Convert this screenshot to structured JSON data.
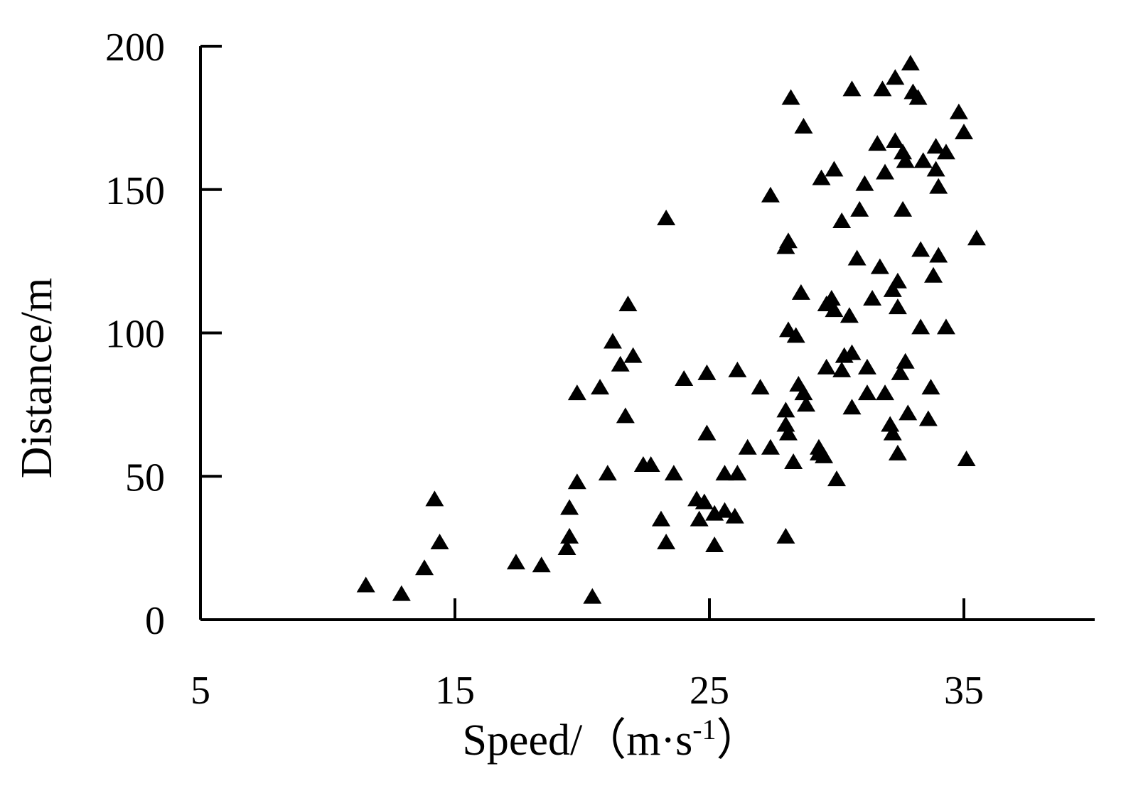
{
  "chart_data": {
    "type": "scatter",
    "title": "",
    "xlabel": "Speed/（m·s",
    "xlabel_superscript": "-1",
    "xlabel_close": "）",
    "ylabel": "Distance/m",
    "xlim": [
      5,
      40
    ],
    "ylim": [
      0,
      200
    ],
    "x_ticks": [
      5,
      15,
      25,
      35
    ],
    "y_ticks": [
      0,
      50,
      100,
      150,
      200
    ],
    "x_tick_labels": [
      "5",
      "15",
      "25",
      "35"
    ],
    "y_tick_labels": [
      "0",
      "50",
      "100",
      "150",
      "200"
    ],
    "grid": false,
    "marker": "triangle",
    "marker_color": "#000000",
    "series": [
      {
        "points": [
          [
            11.5,
            12
          ],
          [
            12.9,
            9
          ],
          [
            13.8,
            18
          ],
          [
            14.2,
            42
          ],
          [
            14.4,
            27
          ],
          [
            17.4,
            20
          ],
          [
            18.4,
            19
          ],
          [
            19.4,
            25
          ],
          [
            19.5,
            29
          ],
          [
            19.5,
            39
          ],
          [
            19.8,
            48
          ],
          [
            19.8,
            79
          ],
          [
            20.4,
            8
          ],
          [
            20.7,
            81
          ],
          [
            21.0,
            51
          ],
          [
            21.2,
            97
          ],
          [
            21.5,
            89
          ],
          [
            21.7,
            71
          ],
          [
            21.8,
            110
          ],
          [
            22.0,
            92
          ],
          [
            22.4,
            54
          ],
          [
            22.7,
            54
          ],
          [
            23.1,
            35
          ],
          [
            23.3,
            27
          ],
          [
            23.3,
            140
          ],
          [
            23.6,
            51
          ],
          [
            24.0,
            84
          ],
          [
            24.5,
            42
          ],
          [
            24.6,
            35
          ],
          [
            24.8,
            41
          ],
          [
            24.9,
            86
          ],
          [
            24.9,
            65
          ],
          [
            25.2,
            37
          ],
          [
            25.2,
            26
          ],
          [
            25.6,
            38
          ],
          [
            25.6,
            51
          ],
          [
            26.0,
            36
          ],
          [
            26.1,
            51
          ],
          [
            26.1,
            87
          ],
          [
            26.5,
            60
          ],
          [
            27.0,
            81
          ],
          [
            27.4,
            148
          ],
          [
            27.4,
            60
          ],
          [
            28.0,
            29
          ],
          [
            28.0,
            73
          ],
          [
            28.0,
            68
          ],
          [
            28.1,
            65
          ],
          [
            28.1,
            101
          ],
          [
            28.0,
            130
          ],
          [
            28.1,
            132
          ],
          [
            28.2,
            182
          ],
          [
            28.3,
            55
          ],
          [
            28.4,
            99
          ],
          [
            28.5,
            82
          ],
          [
            28.6,
            114
          ],
          [
            28.7,
            79
          ],
          [
            28.7,
            172
          ],
          [
            28.8,
            75
          ],
          [
            29.3,
            58
          ],
          [
            29.3,
            60
          ],
          [
            29.4,
            154
          ],
          [
            29.5,
            57
          ],
          [
            29.6,
            110
          ],
          [
            29.6,
            88
          ],
          [
            29.8,
            112
          ],
          [
            29.9,
            157
          ],
          [
            29.9,
            108
          ],
          [
            30.0,
            49
          ],
          [
            30.2,
            139
          ],
          [
            30.2,
            87
          ],
          [
            30.3,
            92
          ],
          [
            30.5,
            106
          ],
          [
            30.6,
            93
          ],
          [
            30.6,
            185
          ],
          [
            30.6,
            74
          ],
          [
            30.8,
            126
          ],
          [
            30.9,
            143
          ],
          [
            31.1,
            152
          ],
          [
            31.2,
            88
          ],
          [
            31.2,
            79
          ],
          [
            31.4,
            112
          ],
          [
            31.6,
            166
          ],
          [
            31.7,
            123
          ],
          [
            31.8,
            185
          ],
          [
            31.9,
            156
          ],
          [
            31.9,
            79
          ],
          [
            32.1,
            68
          ],
          [
            32.2,
            65
          ],
          [
            32.2,
            115
          ],
          [
            32.3,
            189
          ],
          [
            32.3,
            167
          ],
          [
            32.4,
            118
          ],
          [
            32.4,
            109
          ],
          [
            32.4,
            58
          ],
          [
            32.5,
            86
          ],
          [
            32.6,
            143
          ],
          [
            32.6,
            163
          ],
          [
            32.7,
            160
          ],
          [
            32.7,
            90
          ],
          [
            32.8,
            72
          ],
          [
            32.9,
            194
          ],
          [
            33.0,
            184
          ],
          [
            33.2,
            182
          ],
          [
            33.3,
            102
          ],
          [
            33.3,
            129
          ],
          [
            33.4,
            160
          ],
          [
            33.6,
            70
          ],
          [
            33.7,
            81
          ],
          [
            33.8,
            120
          ],
          [
            33.9,
            157
          ],
          [
            33.9,
            165
          ],
          [
            34.0,
            151
          ],
          [
            34.0,
            127
          ],
          [
            34.3,
            163
          ],
          [
            34.3,
            102
          ],
          [
            34.8,
            177
          ],
          [
            35.0,
            170
          ],
          [
            35.1,
            56
          ],
          [
            35.5,
            133
          ]
        ]
      }
    ]
  }
}
